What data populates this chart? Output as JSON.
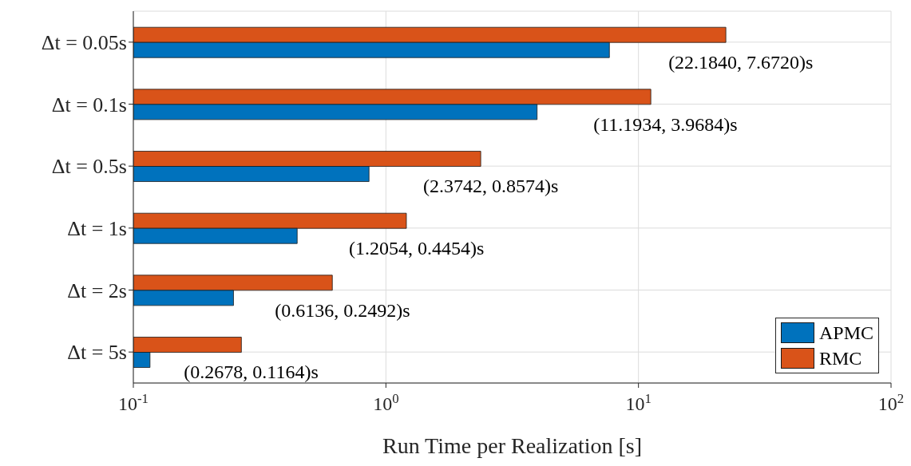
{
  "chart_data": {
    "type": "bar",
    "orientation": "horizontal",
    "xlabel": "Run Time per Realization [s]",
    "categories": [
      "Δt = 0.05s",
      "Δt = 0.1s",
      "Δt = 0.5s",
      "Δt = 1s",
      "Δt = 2s",
      "Δt = 5s"
    ],
    "series": [
      {
        "name": "APMC",
        "color": "#0072bd",
        "values": [
          7.672,
          3.9684,
          0.8574,
          0.4454,
          0.2492,
          0.1164
        ]
      },
      {
        "name": "RMC",
        "color": "#d95319",
        "values": [
          22.184,
          11.1934,
          2.3742,
          1.2054,
          0.6136,
          0.2678
        ]
      }
    ],
    "log": "x",
    "xlim": [
      0.1,
      100
    ],
    "xticks": [
      {
        "value": 0.1,
        "label": "10$^{-1}$"
      },
      {
        "value": 1,
        "label": "10$^{0}$"
      },
      {
        "value": 10,
        "label": "10$^{1}$"
      },
      {
        "value": 100,
        "label": "10$^{2}$"
      }
    ],
    "annotations": [
      {
        "text": "(22.1840, 7.6720)s",
        "x": 22.184,
        "y": "Δt = 0.05s"
      },
      {
        "text": "(11.1934, 3.9684)s",
        "x": 11.1934,
        "y": "Δt = 0.1s"
      },
      {
        "text": "(2.3742, 0.8574)s",
        "x": 2.3742,
        "y": "Δt = 0.5s"
      },
      {
        "text": "(1.2054, 0.4454)s",
        "x": 1.2054,
        "y": "Δt = 1s"
      },
      {
        "text": "(0.6136, 0.2492)s",
        "x": 0.6136,
        "y": "Δt = 2s"
      },
      {
        "text": "(0.2678, 0.1164)s",
        "x": 0.2678,
        "y": "Δt = 5s"
      }
    ],
    "grid": true,
    "legend": "bottom right"
  }
}
